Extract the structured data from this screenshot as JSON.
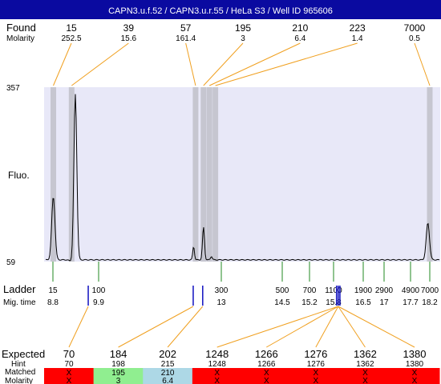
{
  "header": {
    "title": "CAPN3.u.f.52 / CAPN3.u.r.55 / HeLa S3 / Well ID 965606",
    "background": "#0a0aa0"
  },
  "labels": {
    "found": "Found",
    "molarity": "Molarity",
    "fluo": "Fluo.",
    "ladder": "Ladder",
    "mig_time": "Mig. time",
    "expected": "Expected",
    "hint": "Hint",
    "matched": "Matched",
    "molarity_bottom": "Molarity"
  },
  "colors": {
    "plot_bg": "#e8e8f8",
    "band": "#c6c6d0",
    "trace": "#000000",
    "ladder_tick": "#228822",
    "connector": "#f0a020",
    "marker": "#1010c0",
    "bar_red": "#ff0000",
    "bar_green": "#90ee90",
    "bar_blue": "#add8e6"
  },
  "chart_data": {
    "type": "line",
    "title": "CAPN3.u.f.52 / CAPN3.u.r.55 / HeLa S3 / Well ID 965606",
    "ylabel": "Fluo.",
    "ylim": [
      59,
      357
    ],
    "y_ticks": [
      "357",
      "59"
    ],
    "found": [
      {
        "size": "15",
        "molarity": "252.5",
        "time": 8.81
      },
      {
        "size": "39",
        "molarity": "15.6",
        "time": 9.25
      },
      {
        "size": "57",
        "molarity": "161.4",
        "time": 12.35
      },
      {
        "size": "195",
        "molarity": "3",
        "time": 12.55
      },
      {
        "size": "210",
        "molarity": "6.4",
        "time": 12.7
      },
      {
        "size": "223",
        "molarity": "1.4",
        "time": 12.85
      },
      {
        "size": "7000",
        "molarity": "0.5",
        "time": 18.2
      }
    ],
    "ladder": [
      {
        "size": "15",
        "time": "8.8"
      },
      {
        "size": "100",
        "time": "9.9"
      },
      {
        "size": "300",
        "time": "13"
      },
      {
        "size": "500",
        "time": "14.5"
      },
      {
        "size": "700",
        "time": "15.2"
      },
      {
        "size": "1100",
        "time": "15.8"
      },
      {
        "size": "1900",
        "time": "16.5"
      },
      {
        "size": "2900",
        "time": "17"
      },
      {
        "size": "4900",
        "time": "17.7"
      },
      {
        "size": "7000",
        "time": "18.2"
      }
    ],
    "trace_peaks": [
      {
        "time": 8.81,
        "height": 170,
        "width": 0.055
      },
      {
        "time": 9.34,
        "height": 345,
        "width": 0.05
      },
      {
        "time": 9.22,
        "height": 60,
        "width": 0.05
      },
      {
        "time": 12.3,
        "height": 85,
        "width": 0.03
      },
      {
        "time": 12.55,
        "height": 118,
        "width": 0.035
      },
      {
        "time": 12.75,
        "height": 68,
        "width": 0.03
      },
      {
        "time": 18.15,
        "height": 125,
        "width": 0.06
      }
    ],
    "expected_markers": [
      9.65,
      12.29,
      12.53,
      15.87,
      15.91,
      15.95
    ],
    "expected": [
      {
        "size": "70",
        "hint": "70",
        "matched": "X",
        "molarity": "X",
        "status": "unmatched"
      },
      {
        "size": "184",
        "hint": "198",
        "matched": "195",
        "molarity": "3",
        "status": "matched"
      },
      {
        "size": "202",
        "hint": "215",
        "matched": "210",
        "molarity": "6.4",
        "status": "close"
      },
      {
        "size": "1248",
        "hint": "1248",
        "matched": "X",
        "molarity": "X",
        "status": "unmatched"
      },
      {
        "size": "1266",
        "hint": "1266",
        "matched": "X",
        "molarity": "X",
        "status": "unmatched"
      },
      {
        "size": "1276",
        "hint": "1276",
        "matched": "X",
        "molarity": "X",
        "status": "unmatched"
      },
      {
        "size": "1362",
        "hint": "1362",
        "matched": "X",
        "molarity": "X",
        "status": "unmatched"
      },
      {
        "size": "1380",
        "hint": "1380",
        "matched": "X",
        "molarity": "X",
        "status": "unmatched"
      }
    ]
  }
}
